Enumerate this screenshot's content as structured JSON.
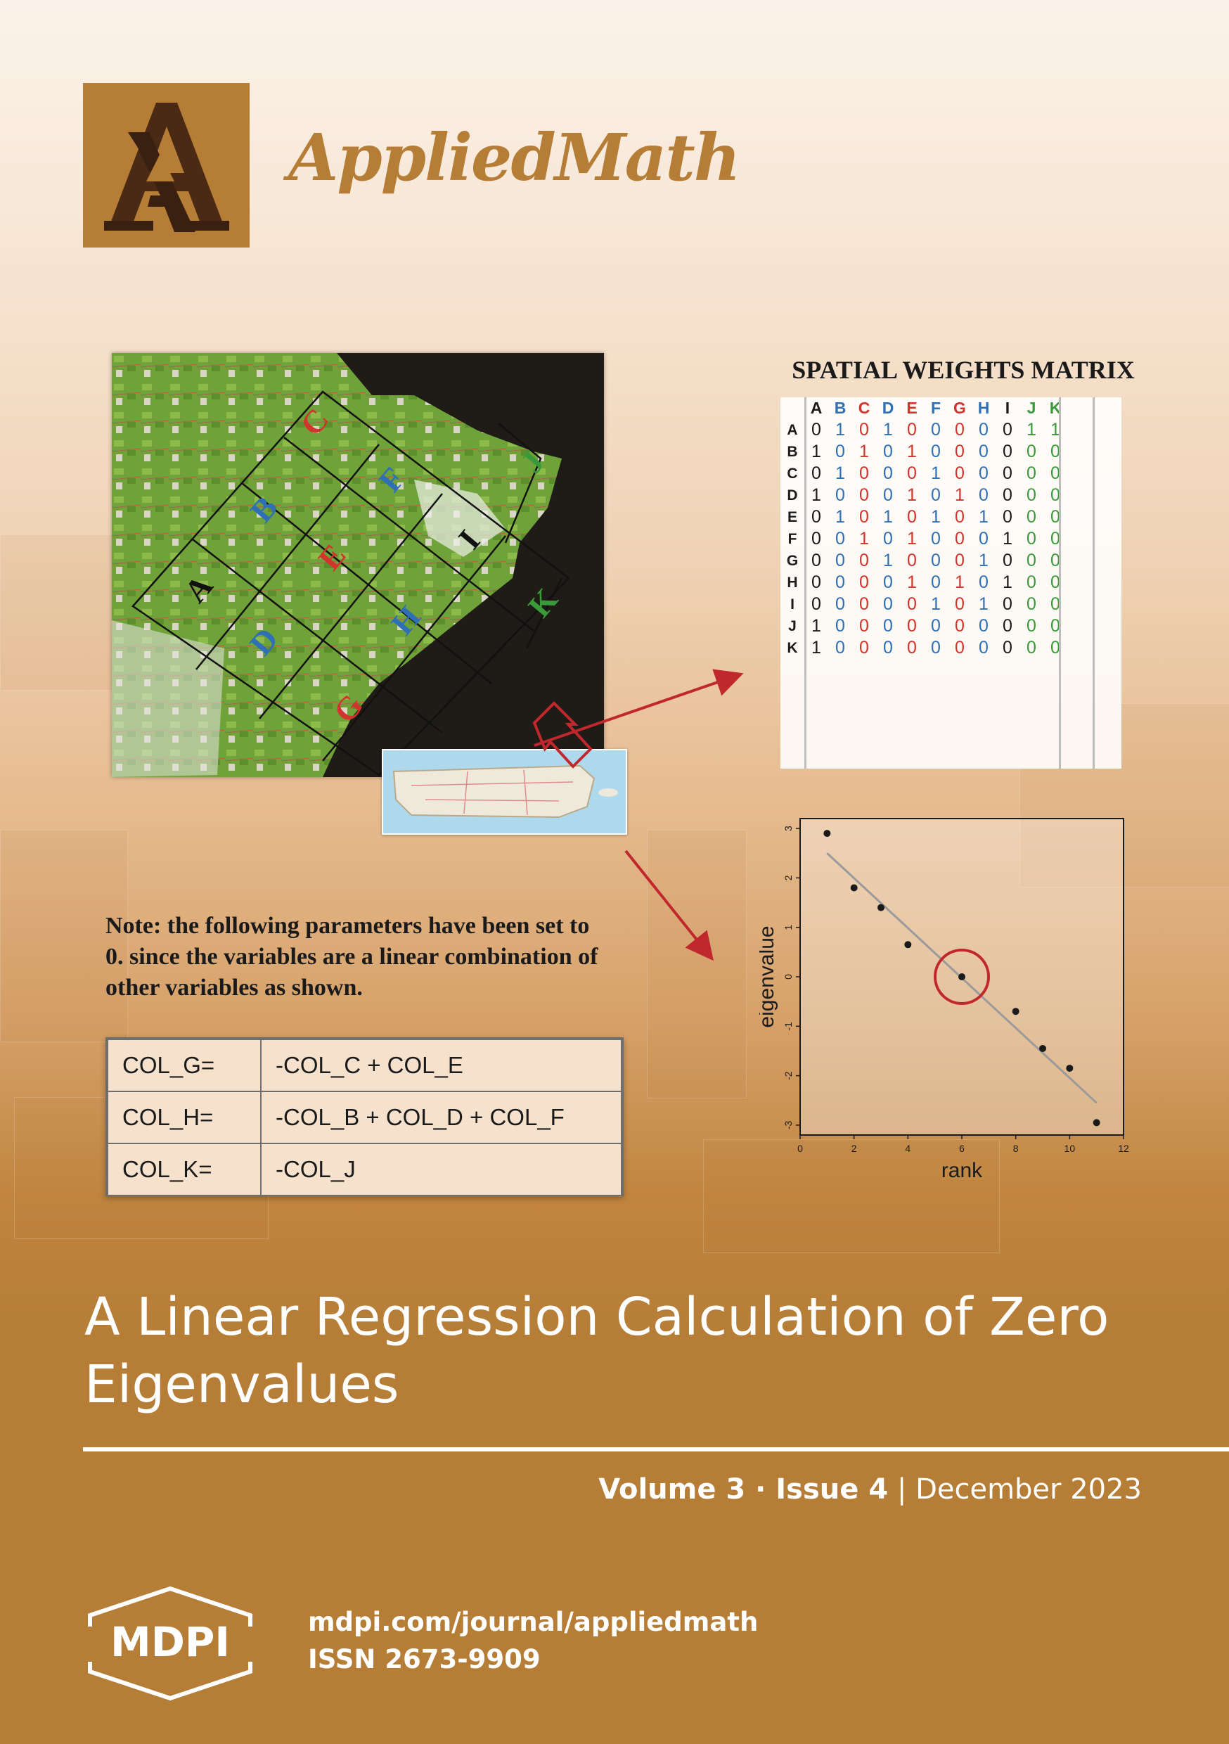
{
  "journal": {
    "name": "AppliedMath"
  },
  "figure": {
    "map_labels": [
      "A",
      "B",
      "C",
      "D",
      "E",
      "F",
      "G",
      "H",
      "I",
      "J",
      "K"
    ],
    "matrix_title": "SPATIAL WEIGHTS MATRIX",
    "matrix_header": [
      "A",
      "B",
      "C",
      "D",
      "E",
      "F",
      "G",
      "H",
      "I",
      "J",
      "K"
    ],
    "matrix_rows": [
      {
        "label": "A",
        "values": [
          "0",
          "1",
          "0",
          "1",
          "0",
          "0",
          "0",
          "0",
          "0",
          "1",
          "1"
        ]
      },
      {
        "label": "B",
        "values": [
          "1",
          "0",
          "1",
          "0",
          "1",
          "0",
          "0",
          "0",
          "0",
          "0",
          "0"
        ]
      },
      {
        "label": "C",
        "values": [
          "0",
          "1",
          "0",
          "0",
          "0",
          "1",
          "0",
          "0",
          "0",
          "0",
          "0"
        ]
      },
      {
        "label": "D",
        "values": [
          "1",
          "0",
          "0",
          "0",
          "1",
          "0",
          "1",
          "0",
          "0",
          "0",
          "0"
        ]
      },
      {
        "label": "E",
        "values": [
          "0",
          "1",
          "0",
          "1",
          "0",
          "1",
          "0",
          "1",
          "0",
          "0",
          "0"
        ]
      },
      {
        "label": "F",
        "values": [
          "0",
          "0",
          "1",
          "0",
          "1",
          "0",
          "0",
          "0",
          "1",
          "0",
          "0"
        ]
      },
      {
        "label": "G",
        "values": [
          "0",
          "0",
          "0",
          "1",
          "0",
          "0",
          "0",
          "1",
          "0",
          "0",
          "0"
        ]
      },
      {
        "label": "H",
        "values": [
          "0",
          "0",
          "0",
          "0",
          "1",
          "0",
          "1",
          "0",
          "1",
          "0",
          "0"
        ]
      },
      {
        "label": "I",
        "values": [
          "0",
          "0",
          "0",
          "0",
          "0",
          "1",
          "0",
          "1",
          "0",
          "0",
          "0"
        ]
      },
      {
        "label": "J",
        "values": [
          "1",
          "0",
          "0",
          "0",
          "0",
          "0",
          "0",
          "0",
          "0",
          "0",
          "0"
        ]
      },
      {
        "label": "K",
        "values": [
          "1",
          "0",
          "0",
          "0",
          "0",
          "0",
          "0",
          "0",
          "0",
          "0",
          "0"
        ]
      }
    ],
    "column_colors": [
      "#1a1a1a",
      "#2f6fb5",
      "#d0342c",
      "#2f6fb5",
      "#d0342c",
      "#2f6fb5",
      "#d0342c",
      "#2f6fb5",
      "#1a1a1a",
      "#3a9a3a",
      "#3a9a3a"
    ],
    "note": "Note: the following parameters have been set to 0. since the variables are a linear combination of other variables as shown.",
    "equations": [
      {
        "lhs": "COL_G=",
        "rhs": "-COL_C + COL_E"
      },
      {
        "lhs": "COL_H=",
        "rhs": "-COL_B + COL_D + COL_F"
      },
      {
        "lhs": "COL_K=",
        "rhs": "-COL_J"
      }
    ]
  },
  "chart_data": {
    "type": "scatter",
    "xlabel": "rank",
    "ylabel": "eigenvalue",
    "xlim": [
      0,
      12
    ],
    "ylim": [
      -3.2,
      3.2
    ],
    "xticks": [
      "0",
      "2",
      "4",
      "6",
      "8",
      "10",
      "12"
    ],
    "yticks": [
      "3",
      "2",
      "1",
      "0",
      "-1",
      "-2",
      "-3"
    ],
    "points": [
      {
        "x": 1,
        "y": 2.9
      },
      {
        "x": 2,
        "y": 1.8
      },
      {
        "x": 3,
        "y": 1.4
      },
      {
        "x": 4,
        "y": 0.65
      },
      {
        "x": 6,
        "y": 0.0
      },
      {
        "x": 8,
        "y": -0.7
      },
      {
        "x": 9,
        "y": -1.45
      },
      {
        "x": 10,
        "y": -1.85
      },
      {
        "x": 11,
        "y": -2.95
      }
    ],
    "fit_line": [
      {
        "x": 1,
        "y": 2.5
      },
      {
        "x": 11,
        "y": -2.55
      }
    ],
    "highlight": {
      "x": 6,
      "y": 0.0
    },
    "colors": {
      "points": "#1a1a1a",
      "fit": "#9a9a9a",
      "highlight": "#c0282d"
    }
  },
  "article": {
    "title": "A Linear Regression Calculation of Zero Eigenvalues"
  },
  "issue": {
    "volume": "Volume 3",
    "sep": " · ",
    "issue": "Issue 4",
    "bar": " | ",
    "date": "December 2023"
  },
  "publisher": {
    "name": "MDPI",
    "url": "mdpi.com/journal/appliedmath",
    "issn": "ISSN 2673-9909"
  }
}
